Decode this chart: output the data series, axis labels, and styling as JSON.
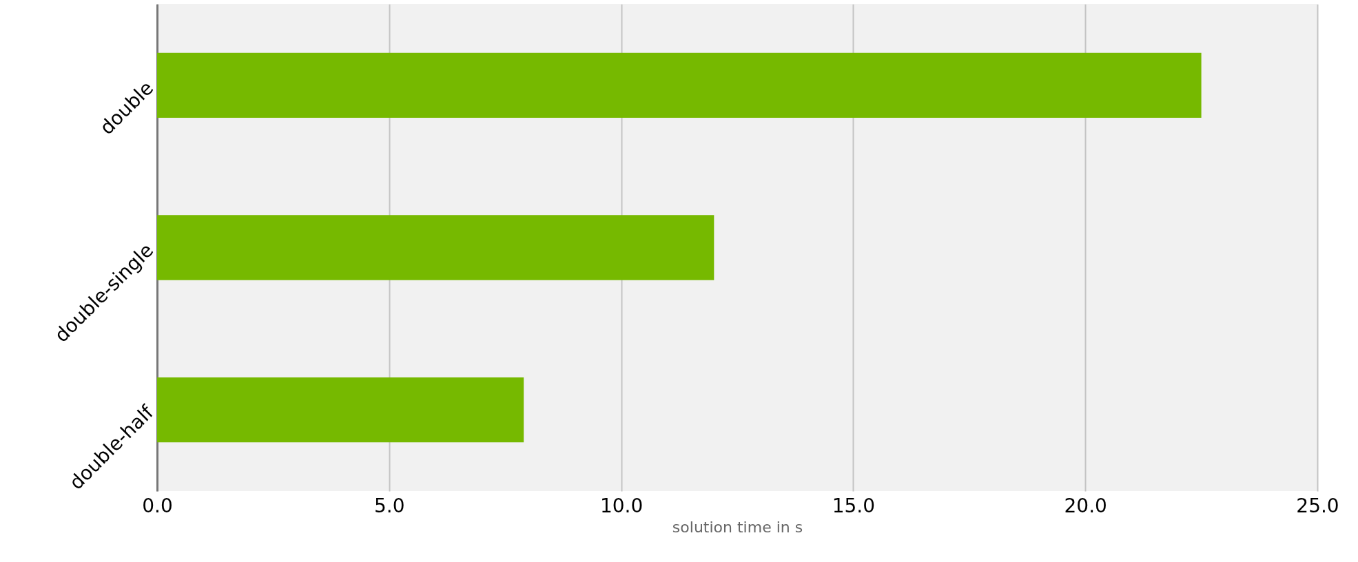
{
  "chart_data": {
    "type": "bar",
    "orientation": "horizontal",
    "categories": [
      "double",
      "double-single",
      "double-half"
    ],
    "values": [
      22.5,
      12.0,
      7.9
    ],
    "color": "#76b900",
    "xlabel": "solution time in s",
    "xlim": [
      0,
      25
    ],
    "xticks": [
      {
        "value": 0,
        "label": "0.0"
      },
      {
        "value": 5,
        "label": "5.0"
      },
      {
        "value": 10,
        "label": "10.0"
      },
      {
        "value": 15,
        "label": "15.0"
      },
      {
        "value": 20,
        "label": "20.0"
      },
      {
        "value": 25,
        "label": "25.0"
      }
    ],
    "grid": "x"
  }
}
